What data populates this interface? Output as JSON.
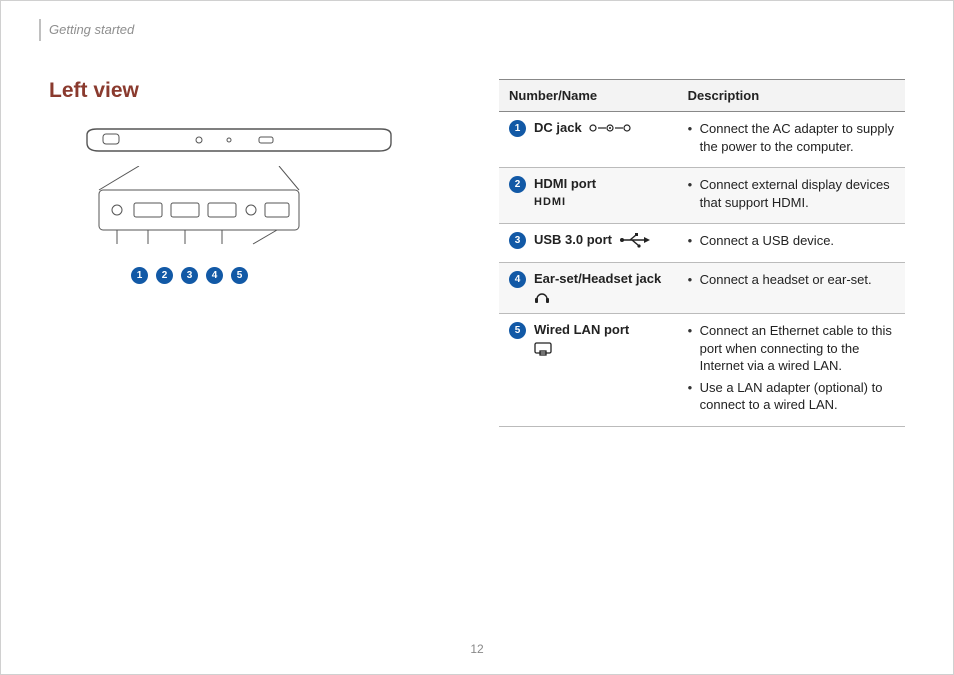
{
  "header": {
    "section": "Getting started"
  },
  "title": "Left view",
  "table": {
    "headers": {
      "name": "Number/Name",
      "desc": "Description"
    },
    "rows": [
      {
        "num": "1",
        "name": "DC jack",
        "icon": "dc",
        "desc": [
          "Connect the AC adapter to supply the power to the computer."
        ]
      },
      {
        "num": "2",
        "name": "HDMI port",
        "icon": "hdmi",
        "desc": [
          "Connect external display devices that support HDMI."
        ]
      },
      {
        "num": "3",
        "name": "USB 3.0 port",
        "icon": "usb",
        "desc": [
          "Connect a USB device."
        ]
      },
      {
        "num": "4",
        "name": "Ear-set/Headset jack",
        "icon": "headset",
        "desc": [
          "Connect a headset or ear-set."
        ]
      },
      {
        "num": "5",
        "name": "Wired LAN port",
        "icon": "lan",
        "desc": [
          "Connect an Ethernet cable to this port when connecting to the Internet via a wired LAN.",
          "Use a LAN adapter (optional) to connect to a wired LAN."
        ]
      }
    ]
  },
  "diagram": {
    "callouts": [
      "1",
      "2",
      "3",
      "4",
      "5"
    ]
  },
  "colors": {
    "accent": "#8a3a2e",
    "badge": "#1259a6",
    "header_bg": "#f3f3f3",
    "alt_bg": "#f7f7f7",
    "rule": "#888888",
    "muted": "#8f8f8f"
  },
  "typography": {
    "title_pt": 21,
    "body_pt": 13,
    "header_label_pt": 13,
    "pagenum_pt": 12
  },
  "page_number": "12"
}
